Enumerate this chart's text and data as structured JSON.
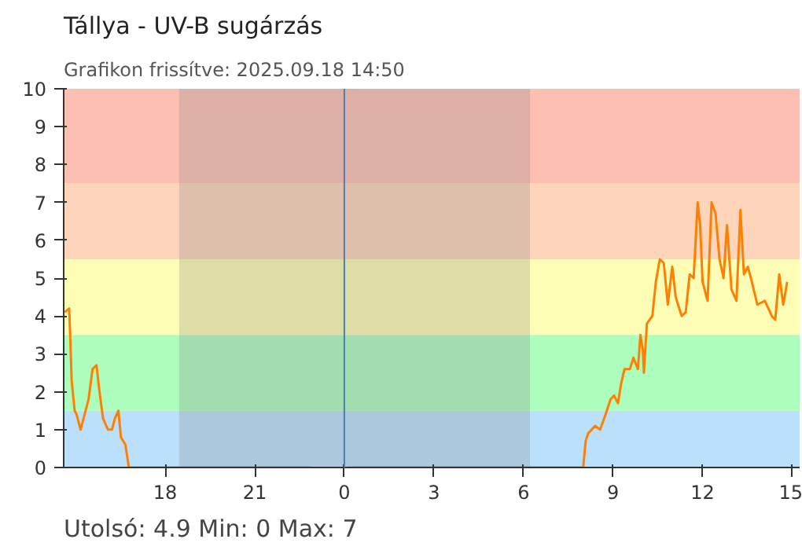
{
  "chart_data": {
    "type": "line",
    "title": "Tállya - UV-B sugárzás",
    "subtitle": "Grafikon frissítve: 2025.09.18 14:50",
    "annotations": [
      "Utolsó: 4.9  Min: 0  Max: 7"
    ],
    "series": [
      {
        "color": "#ff8000",
        "x": [
          "2025-09-17T14:38",
          "2025-09-17T14:47",
          "2025-09-17T14:49",
          "2025-09-17T14:52",
          "2025-09-17T14:58",
          "2025-09-17T15:02",
          "2025-09-17T15:10",
          "2025-09-17T15:18",
          "2025-09-17T15:26",
          "2025-09-17T15:34",
          "2025-09-17T15:42",
          "2025-09-17T15:47",
          "2025-09-17T15:55",
          "2025-09-17T16:05",
          "2025-09-17T16:13",
          "2025-09-17T16:19",
          "2025-09-17T16:26",
          "2025-09-17T16:31",
          "2025-09-17T16:40",
          "2025-09-17T16:47",
          "2025-09-17T22:54",
          "2025-09-17T23:30",
          "2025-09-18T00:06",
          "2025-09-18T08:00",
          "2025-09-18T08:05",
          "2025-09-18T08:10",
          "2025-09-18T08:24",
          "2025-09-18T08:34",
          "2025-09-18T08:45",
          "2025-09-18T08:55",
          "2025-09-18T09:02",
          "2025-09-18T09:10",
          "2025-09-18T09:16",
          "2025-09-18T09:23",
          "2025-09-18T09:34",
          "2025-09-18T09:41",
          "2025-09-18T09:50",
          "2025-09-18T09:55",
          "2025-09-18T10:00",
          "2025-09-18T10:02",
          "2025-09-18T10:08",
          "2025-09-18T10:19",
          "2025-09-18T10:26",
          "2025-09-18T10:34",
          "2025-09-18T10:42",
          "2025-09-18T10:50",
          "2025-09-18T10:59",
          "2025-09-18T11:06",
          "2025-09-18T11:13",
          "2025-09-18T11:18",
          "2025-09-18T11:26",
          "2025-09-18T11:34",
          "2025-09-18T11:42",
          "2025-09-18T11:50",
          "2025-09-18T11:55",
          "2025-09-18T12:00",
          "2025-09-18T12:10",
          "2025-09-18T12:18",
          "2025-09-18T12:26",
          "2025-09-18T12:34",
          "2025-09-18T12:42",
          "2025-09-18T12:49",
          "2025-09-18T12:58",
          "2025-09-18T13:08",
          "2025-09-18T13:16",
          "2025-09-18T13:23",
          "2025-09-18T13:31",
          "2025-09-18T13:39",
          "2025-09-18T13:50",
          "2025-09-18T14:05",
          "2025-09-18T14:19",
          "2025-09-18T14:26",
          "2025-09-18T14:34",
          "2025-09-18T14:42",
          "2025-09-18T14:50"
        ],
        "values": [
          4.1,
          4.2,
          3.5,
          2.3,
          1.5,
          1.4,
          1.0,
          1.4,
          1.8,
          2.6,
          2.7,
          2.1,
          1.3,
          1.0,
          1.0,
          1.3,
          1.5,
          0.8,
          0.6,
          0,
          0,
          null,
          0,
          0,
          0.7,
          0.9,
          1.1,
          1.0,
          1.4,
          1.8,
          1.9,
          1.7,
          2.2,
          2.6,
          2.6,
          2.9,
          2.6,
          3.5,
          3.1,
          2.5,
          3.8,
          4.0,
          4.9,
          5.5,
          5.4,
          4.3,
          5.3,
          4.5,
          4.2,
          4.0,
          4.1,
          5.1,
          5.0,
          7.0,
          6.4,
          4.9,
          4.4,
          7.0,
          6.7,
          5.5,
          5.0,
          6.4,
          4.7,
          4.4,
          6.8,
          5.1,
          5.3,
          4.9,
          4.3,
          4.4,
          4.0,
          3.9,
          5.1,
          4.3,
          4.9
        ]
      }
    ],
    "xlim": [
      "2025-09-17T14:36",
      "2025-09-18T15:15"
    ],
    "ylim": [
      0,
      10
    ],
    "xticks": [
      {
        "value": "2025-09-17T18:00",
        "label": "18"
      },
      {
        "value": "2025-09-17T21:00",
        "label": "21"
      },
      {
        "value": "2025-09-18T00:00",
        "label": "0"
      },
      {
        "value": "2025-09-18T03:00",
        "label": "3"
      },
      {
        "value": "2025-09-18T06:00",
        "label": "6"
      },
      {
        "value": "2025-09-18T09:00",
        "label": "9"
      },
      {
        "value": "2025-09-18T12:00",
        "label": "12"
      },
      {
        "value": "2025-09-18T15:00",
        "label": "15"
      }
    ],
    "yticks": [
      0,
      1,
      2,
      3,
      4,
      5,
      6,
      7,
      8,
      9,
      10
    ],
    "bands": [
      {
        "axis": "y",
        "from": 0,
        "to": 1.5,
        "color": "#bbe0fb"
      },
      {
        "axis": "y",
        "from": 1.5,
        "to": 3.5,
        "color": "#adfdbd"
      },
      {
        "axis": "y",
        "from": 3.5,
        "to": 5.5,
        "color": "#fefdb5"
      },
      {
        "axis": "y",
        "from": 5.5,
        "to": 7.5,
        "color": "#fed5bb"
      },
      {
        "axis": "y",
        "from": 7.5,
        "to": 10,
        "color": "#febfb3"
      },
      {
        "axis": "x",
        "from": "2025-09-17T18:28",
        "to": "2025-09-18T06:13",
        "color": "#808080"
      }
    ],
    "ref_lines": [
      {
        "axis": "x",
        "value": "2025-09-18T00:00",
        "color": "#4a7fb0"
      }
    ],
    "grid": false,
    "marker": "none",
    "line_style": "solid"
  }
}
